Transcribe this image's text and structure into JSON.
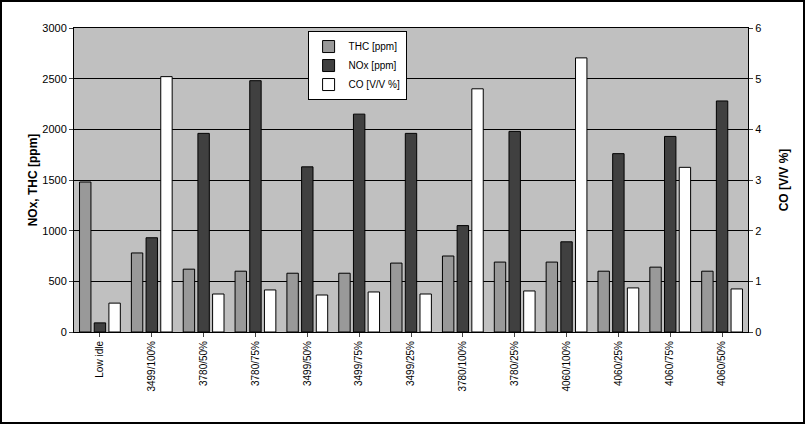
{
  "chart_data": {
    "type": "bar",
    "categories": [
      "Low idle",
      "3499/100%",
      "3780/50%",
      "3780/75%",
      "3499/50%",
      "3499/75%",
      "3499/25%",
      "3780/100%",
      "3780/25%",
      "4060/100%",
      "4060/25%",
      "4060/75%",
      "4060/50%"
    ],
    "series": [
      {
        "name": "THC [ppm]",
        "color": "#999999",
        "values": [
          1480,
          780,
          620,
          600,
          580,
          580,
          680,
          750,
          690,
          690,
          600,
          640,
          600
        ]
      },
      {
        "name": "NOx [ppm]",
        "color": "#404040",
        "values": [
          90,
          930,
          1960,
          2480,
          1630,
          2150,
          1960,
          1050,
          1980,
          890,
          1760,
          1930,
          2280
        ]
      },
      {
        "name": "CO [V/V %]",
        "color": "#ffffff",
        "axis": "y2",
        "values": [
          0.57,
          5.04,
          0.75,
          0.83,
          0.73,
          0.79,
          0.75,
          4.8,
          0.81,
          5.41,
          0.87,
          3.25,
          0.85
        ]
      }
    ],
    "y_label": "NOx, THC [ppm]",
    "y2_label": "CO [V/V %]",
    "ylim": [
      0,
      3000
    ],
    "yticks": [
      0,
      500,
      1000,
      1500,
      2000,
      2500,
      3000
    ],
    "y2lim": [
      0,
      6
    ],
    "y2ticks": [
      0,
      1,
      2,
      3,
      4,
      5,
      6
    ],
    "grid": true,
    "legend": "top"
  }
}
